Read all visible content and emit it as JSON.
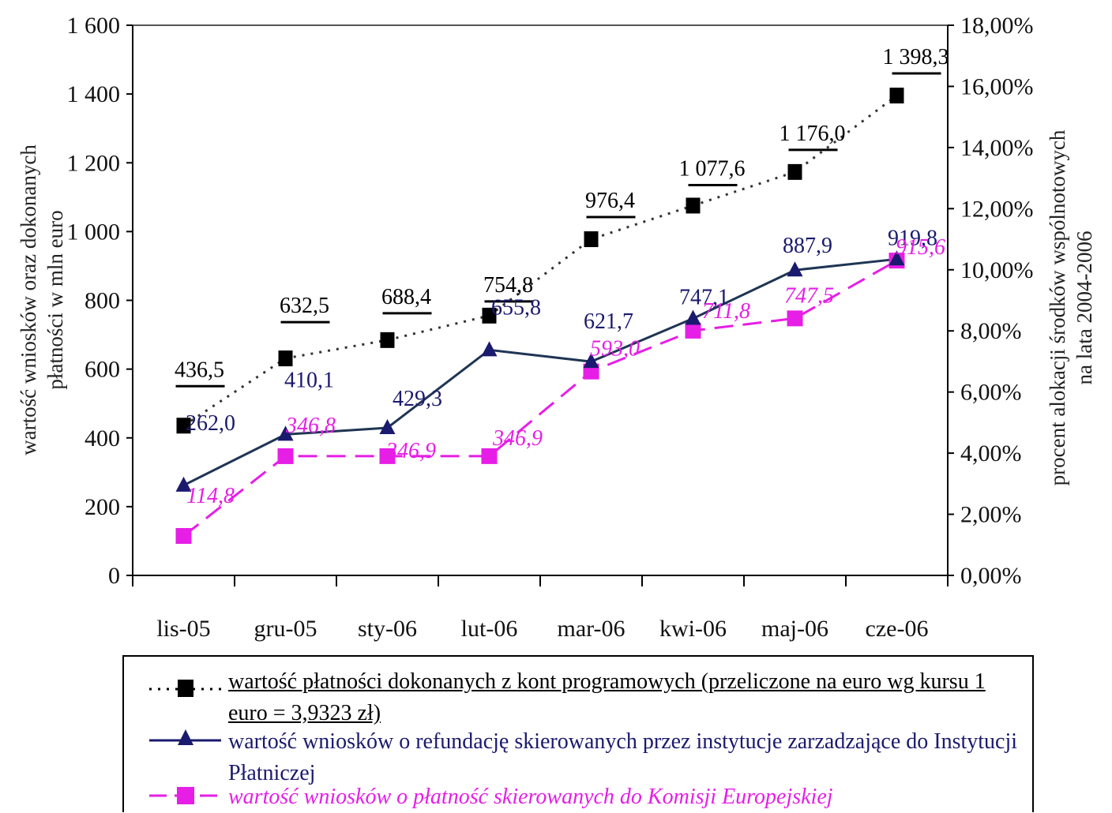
{
  "chart_data": {
    "type": "line",
    "categories": [
      "lis-05",
      "gru-05",
      "sty-06",
      "lut-06",
      "mar-06",
      "kwi-06",
      "maj-06",
      "cze-06"
    ],
    "ylabel": "wartość wniosków oraz dokonanych płatności w mln euro",
    "y2label": "procent alokacji środków wspólnotowych na lata 2004-2006",
    "ylim": [
      0,
      1600
    ],
    "y2lim": [
      0,
      18
    ],
    "y_ticks": [
      "0",
      "200",
      "400",
      "600",
      "800",
      "1 000",
      "1 200",
      "1 400",
      "1 600"
    ],
    "y2_ticks": [
      "0,00%",
      "2,00%",
      "4,00%",
      "6,00%",
      "8,00%",
      "10,00%",
      "12,00%",
      "14,00%",
      "16,00%",
      "18,00%"
    ],
    "grid": false,
    "legend_position": "bottom",
    "series": [
      {
        "name": "wartość płatności dokonanych z kont programowych (przeliczone na euro wg kursu 1 euro = 3,9323 zł)",
        "axis": "right",
        "values_percent": [
          4.9,
          7.1,
          7.7,
          8.5,
          11.0,
          12.1,
          13.2,
          15.7
        ],
        "labels": [
          "436,5",
          "632,5",
          "688,4",
          "754,8",
          "976,4",
          "1 077,6",
          "1 176,0",
          "1 398,3"
        ],
        "style": "dotted",
        "marker": "square",
        "color": "#000000"
      },
      {
        "name": "wartość wniosków o refundację skierowanych przez instytucje zarzadzające do Instytucji Płatniczej",
        "axis": "left",
        "values": [
          262.0,
          410.1,
          429.3,
          655.8,
          621.7,
          747.1,
          887.9,
          919.8
        ],
        "labels": [
          "262,0",
          "410,1",
          "429,3",
          "655,8",
          "621,7",
          "747,1",
          "887,9",
          "919,8"
        ],
        "style": "solid",
        "marker": "triangle",
        "color": "#1a1a6e"
      },
      {
        "name": "wartość wniosków o płatność skierowanych do Komisji Europejskiej",
        "axis": "left",
        "values": [
          114.8,
          346.8,
          346.9,
          346.9,
          593.0,
          711.8,
          747.5,
          915.6
        ],
        "labels": [
          "114,8",
          "346,8",
          "346,9",
          "346,9",
          "593,0",
          "711,8",
          "747,5",
          "915,6"
        ],
        "style": "dashed",
        "marker": "square",
        "color": "#e61ee6"
      }
    ]
  }
}
